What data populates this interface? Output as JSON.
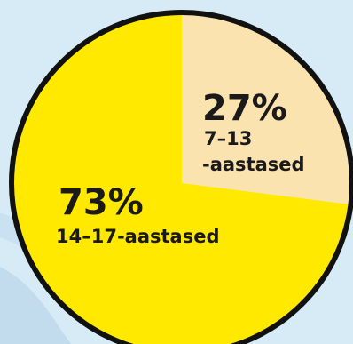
{
  "chart_data": {
    "type": "pie",
    "slices": [
      {
        "label_lines": [
          "7–13",
          "-aastased"
        ],
        "percent_text": "27%",
        "value": 27,
        "color": "#fbe3b0"
      },
      {
        "label_lines": [
          "14–17-aastased"
        ],
        "percent_text": "73%",
        "value": 73,
        "color": "#ffe900"
      }
    ],
    "outline_color": "#111111",
    "background_color": "#d6ebf6"
  }
}
